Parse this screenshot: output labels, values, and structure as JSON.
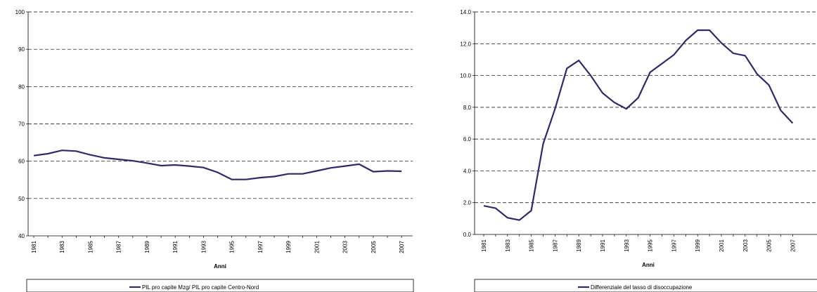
{
  "chart_data": [
    {
      "type": "line",
      "xlabel": "Anni",
      "ylabel": "",
      "ylim": [
        40,
        100
      ],
      "yticks": [
        40,
        50,
        60,
        70,
        80,
        90,
        100
      ],
      "x_tick_labels": [
        "1981",
        "1983",
        "1985",
        "1987",
        "1989",
        "1991",
        "1993",
        "1995",
        "1997",
        "1999",
        "2001",
        "2003",
        "2005",
        "2007"
      ],
      "grid": "horizontal dashed",
      "legend_position": "bottom",
      "line_color": "#2b2a6e",
      "series": [
        {
          "name": "PIL pro capite Mzg/ PIL pro capite Centro-Nord",
          "x": [
            1981,
            1982,
            1983,
            1984,
            1985,
            1986,
            1987,
            1988,
            1989,
            1990,
            1991,
            1992,
            1993,
            1994,
            1995,
            1996,
            1997,
            1998,
            1999,
            2000,
            2001,
            2002,
            2003,
            2004,
            2005,
            2006,
            2007
          ],
          "values": [
            61.5,
            62.0,
            62.9,
            62.7,
            61.7,
            60.9,
            60.5,
            60.1,
            59.5,
            58.8,
            59.0,
            58.7,
            58.3,
            57.0,
            55.1,
            55.1,
            55.6,
            55.9,
            56.6,
            56.6,
            57.4,
            58.2,
            58.7,
            59.2,
            57.2,
            57.4,
            57.3
          ]
        }
      ]
    },
    {
      "type": "line",
      "xlabel": "Anni",
      "ylabel": "",
      "ylim": [
        0,
        14
      ],
      "yticks": [
        "0.0",
        "2.0",
        "4.0",
        "6.0",
        "8.0",
        "10.0",
        "12.0",
        "14.0"
      ],
      "x_tick_labels": [
        "1981",
        "1983",
        "1985",
        "1987",
        "1989",
        "1991",
        "1993",
        "1995",
        "1997",
        "1999",
        "2001",
        "2003",
        "2005",
        "2007"
      ],
      "grid": "horizontal dashed",
      "legend_position": "bottom",
      "line_color": "#2b2a6e",
      "series": [
        {
          "name": "Differenziale del tasso di disoccupazione",
          "x": [
            1981,
            1982,
            1983,
            1984,
            1985,
            1986,
            1987,
            1988,
            1989,
            1990,
            1991,
            1992,
            1993,
            1994,
            1995,
            1996,
            1997,
            1998,
            1999,
            2000,
            2001,
            2002,
            2003,
            2004,
            2005,
            2006,
            2007
          ],
          "values": [
            1.8,
            1.65,
            1.05,
            0.9,
            1.5,
            5.7,
            7.9,
            10.45,
            10.95,
            10.0,
            8.9,
            8.3,
            7.9,
            8.6,
            10.2,
            10.75,
            11.3,
            12.2,
            12.85,
            12.85,
            12.05,
            11.4,
            11.25,
            10.1,
            9.4,
            7.8,
            7.0
          ]
        }
      ]
    }
  ]
}
